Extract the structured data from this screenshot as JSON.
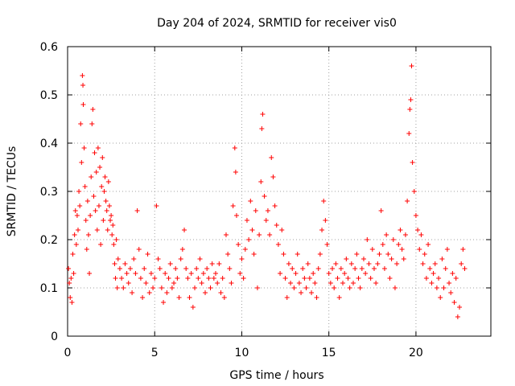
{
  "chart_data": {
    "type": "scatter",
    "title": "Day 204 of 2024, SRMTID for receiver vis0",
    "xlabel": "GPS time / hours",
    "ylabel": "SRMTID / TECUs",
    "xlim": [
      0,
      24.3
    ],
    "ylim": [
      0,
      0.6
    ],
    "grid": true,
    "marker": "+",
    "marker_color": "#ff0000",
    "x_ticks": [
      0,
      5,
      10,
      15,
      20
    ],
    "x_tick_labels": [
      "0",
      "5",
      "10",
      "15",
      "20"
    ],
    "y_ticks": [
      0,
      0.1,
      0.2,
      0.3,
      0.4,
      0.5,
      0.6
    ],
    "y_tick_labels": [
      "0",
      "0.1",
      "0.2",
      "0.3",
      "0.4",
      "0.5",
      "0.6"
    ],
    "series": [
      {
        "name": "SRMTID",
        "points": [
          [
            0.05,
            0.14
          ],
          [
            0.1,
            0.11
          ],
          [
            0.15,
            0.08
          ],
          [
            0.2,
            0.12
          ],
          [
            0.25,
            0.07
          ],
          [
            0.3,
            0.17
          ],
          [
            0.35,
            0.13
          ],
          [
            0.4,
            0.21
          ],
          [
            0.45,
            0.26
          ],
          [
            0.5,
            0.19
          ],
          [
            0.55,
            0.25
          ],
          [
            0.6,
            0.22
          ],
          [
            0.65,
            0.3
          ],
          [
            0.7,
            0.27
          ],
          [
            0.75,
            0.44
          ],
          [
            0.8,
            0.36
          ],
          [
            0.85,
            0.54
          ],
          [
            0.88,
            0.52
          ],
          [
            0.9,
            0.48
          ],
          [
            0.95,
            0.39
          ],
          [
            1.0,
            0.31
          ],
          [
            1.05,
            0.24
          ],
          [
            1.1,
            0.18
          ],
          [
            1.15,
            0.28
          ],
          [
            1.2,
            0.21
          ],
          [
            1.25,
            0.13
          ],
          [
            1.3,
            0.25
          ],
          [
            1.35,
            0.33
          ],
          [
            1.4,
            0.44
          ],
          [
            1.45,
            0.47
          ],
          [
            1.5,
            0.29
          ],
          [
            1.55,
            0.38
          ],
          [
            1.6,
            0.26
          ],
          [
            1.65,
            0.34
          ],
          [
            1.7,
            0.22
          ],
          [
            1.75,
            0.39
          ],
          [
            1.8,
            0.27
          ],
          [
            1.85,
            0.35
          ],
          [
            1.9,
            0.19
          ],
          [
            1.95,
            0.31
          ],
          [
            2.0,
            0.37
          ],
          [
            2.05,
            0.24
          ],
          [
            2.1,
            0.3
          ],
          [
            2.15,
            0.33
          ],
          [
            2.2,
            0.28
          ],
          [
            2.25,
            0.26
          ],
          [
            2.3,
            0.22
          ],
          [
            2.35,
            0.32
          ],
          [
            2.4,
            0.27
          ],
          [
            2.45,
            0.24
          ],
          [
            2.5,
            0.25
          ],
          [
            2.55,
            0.21
          ],
          [
            2.6,
            0.23
          ],
          [
            2.65,
            0.19
          ],
          [
            2.7,
            0.15
          ],
          [
            2.75,
            0.12
          ],
          [
            2.8,
            0.2
          ],
          [
            2.85,
            0.1
          ],
          [
            2.9,
            0.16
          ],
          [
            3.0,
            0.14
          ],
          [
            3.1,
            0.12
          ],
          [
            3.2,
            0.1
          ],
          [
            3.3,
            0.15
          ],
          [
            3.4,
            0.13
          ],
          [
            3.5,
            0.11
          ],
          [
            3.6,
            0.14
          ],
          [
            3.7,
            0.09
          ],
          [
            3.8,
            0.16
          ],
          [
            3.9,
            0.13
          ],
          [
            4.0,
            0.26
          ],
          [
            4.1,
            0.18
          ],
          [
            4.2,
            0.12
          ],
          [
            4.3,
            0.08
          ],
          [
            4.4,
            0.14
          ],
          [
            4.5,
            0.11
          ],
          [
            4.6,
            0.17
          ],
          [
            4.7,
            0.09
          ],
          [
            4.8,
            0.13
          ],
          [
            4.9,
            0.1
          ],
          [
            5.0,
            0.12
          ],
          [
            5.1,
            0.27
          ],
          [
            5.2,
            0.16
          ],
          [
            5.3,
            0.14
          ],
          [
            5.4,
            0.1
          ],
          [
            5.5,
            0.07
          ],
          [
            5.6,
            0.13
          ],
          [
            5.7,
            0.09
          ],
          [
            5.8,
            0.12
          ],
          [
            5.9,
            0.15
          ],
          [
            6.0,
            0.1
          ],
          [
            6.1,
            0.11
          ],
          [
            6.2,
            0.14
          ],
          [
            6.3,
            0.12
          ],
          [
            6.4,
            0.08
          ],
          [
            6.5,
            0.16
          ],
          [
            6.6,
            0.18
          ],
          [
            6.7,
            0.22
          ],
          [
            6.8,
            0.14
          ],
          [
            6.9,
            0.12
          ],
          [
            7.0,
            0.08
          ],
          [
            7.1,
            0.13
          ],
          [
            7.2,
            0.06
          ],
          [
            7.3,
            0.1
          ],
          [
            7.4,
            0.14
          ],
          [
            7.5,
            0.12
          ],
          [
            7.6,
            0.16
          ],
          [
            7.7,
            0.11
          ],
          [
            7.8,
            0.13
          ],
          [
            7.9,
            0.09
          ],
          [
            8.0,
            0.14
          ],
          [
            8.1,
            0.12
          ],
          [
            8.2,
            0.1
          ],
          [
            8.3,
            0.15
          ],
          [
            8.4,
            0.12
          ],
          [
            8.5,
            0.13
          ],
          [
            8.6,
            0.11
          ],
          [
            8.7,
            0.15
          ],
          [
            8.8,
            0.09
          ],
          [
            8.9,
            0.12
          ],
          [
            9.0,
            0.08
          ],
          [
            9.1,
            0.21
          ],
          [
            9.2,
            0.17
          ],
          [
            9.3,
            0.14
          ],
          [
            9.4,
            0.11
          ],
          [
            9.5,
            0.27
          ],
          [
            9.6,
            0.39
          ],
          [
            9.65,
            0.34
          ],
          [
            9.7,
            0.25
          ],
          [
            9.8,
            0.19
          ],
          [
            9.9,
            0.13
          ],
          [
            10.0,
            0.16
          ],
          [
            10.1,
            0.12
          ],
          [
            10.2,
            0.18
          ],
          [
            10.3,
            0.24
          ],
          [
            10.4,
            0.2
          ],
          [
            10.5,
            0.28
          ],
          [
            10.6,
            0.22
          ],
          [
            10.7,
            0.17
          ],
          [
            10.8,
            0.26
          ],
          [
            10.9,
            0.1
          ],
          [
            11.0,
            0.21
          ],
          [
            11.1,
            0.32
          ],
          [
            11.15,
            0.43
          ],
          [
            11.2,
            0.46
          ],
          [
            11.3,
            0.29
          ],
          [
            11.4,
            0.24
          ],
          [
            11.5,
            0.26
          ],
          [
            11.6,
            0.21
          ],
          [
            11.7,
            0.37
          ],
          [
            11.8,
            0.33
          ],
          [
            11.9,
            0.27
          ],
          [
            12.0,
            0.23
          ],
          [
            12.1,
            0.19
          ],
          [
            12.2,
            0.13
          ],
          [
            12.3,
            0.22
          ],
          [
            12.4,
            0.17
          ],
          [
            12.5,
            0.12
          ],
          [
            12.6,
            0.08
          ],
          [
            12.7,
            0.15
          ],
          [
            12.8,
            0.11
          ],
          [
            12.9,
            0.14
          ],
          [
            13.0,
            0.1
          ],
          [
            13.1,
            0.13
          ],
          [
            13.2,
            0.17
          ],
          [
            13.3,
            0.11
          ],
          [
            13.4,
            0.09
          ],
          [
            13.5,
            0.14
          ],
          [
            13.6,
            0.12
          ],
          [
            13.7,
            0.1
          ],
          [
            13.8,
            0.15
          ],
          [
            13.9,
            0.12
          ],
          [
            14.0,
            0.09
          ],
          [
            14.1,
            0.13
          ],
          [
            14.2,
            0.11
          ],
          [
            14.3,
            0.08
          ],
          [
            14.4,
            0.14
          ],
          [
            14.5,
            0.17
          ],
          [
            14.6,
            0.22
          ],
          [
            14.7,
            0.28
          ],
          [
            14.8,
            0.24
          ],
          [
            14.9,
            0.19
          ],
          [
            15.0,
            0.13
          ],
          [
            15.1,
            0.11
          ],
          [
            15.2,
            0.14
          ],
          [
            15.3,
            0.1
          ],
          [
            15.4,
            0.15
          ],
          [
            15.5,
            0.12
          ],
          [
            15.6,
            0.08
          ],
          [
            15.7,
            0.14
          ],
          [
            15.8,
            0.11
          ],
          [
            15.9,
            0.13
          ],
          [
            16.0,
            0.16
          ],
          [
            16.1,
            0.12
          ],
          [
            16.2,
            0.1
          ],
          [
            16.3,
            0.15
          ],
          [
            16.4,
            0.11
          ],
          [
            16.5,
            0.14
          ],
          [
            16.6,
            0.17
          ],
          [
            16.7,
            0.12
          ],
          [
            16.8,
            0.1
          ],
          [
            16.9,
            0.14
          ],
          [
            17.0,
            0.16
          ],
          [
            17.1,
            0.13
          ],
          [
            17.2,
            0.2
          ],
          [
            17.3,
            0.15
          ],
          [
            17.4,
            0.12
          ],
          [
            17.5,
            0.18
          ],
          [
            17.6,
            0.14
          ],
          [
            17.7,
            0.11
          ],
          [
            17.8,
            0.15
          ],
          [
            17.9,
            0.17
          ],
          [
            18.0,
            0.26
          ],
          [
            18.1,
            0.19
          ],
          [
            18.2,
            0.14
          ],
          [
            18.3,
            0.21
          ],
          [
            18.4,
            0.17
          ],
          [
            18.5,
            0.12
          ],
          [
            18.6,
            0.16
          ],
          [
            18.7,
            0.2
          ],
          [
            18.8,
            0.1
          ],
          [
            18.9,
            0.15
          ],
          [
            19.0,
            0.19
          ],
          [
            19.1,
            0.22
          ],
          [
            19.2,
            0.18
          ],
          [
            19.3,
            0.16
          ],
          [
            19.4,
            0.21
          ],
          [
            19.5,
            0.28
          ],
          [
            19.6,
            0.42
          ],
          [
            19.65,
            0.47
          ],
          [
            19.7,
            0.49
          ],
          [
            19.75,
            0.56
          ],
          [
            19.8,
            0.36
          ],
          [
            19.9,
            0.3
          ],
          [
            20.0,
            0.25
          ],
          [
            20.1,
            0.22
          ],
          [
            20.2,
            0.18
          ],
          [
            20.3,
            0.21
          ],
          [
            20.4,
            0.15
          ],
          [
            20.5,
            0.17
          ],
          [
            20.6,
            0.12
          ],
          [
            20.7,
            0.19
          ],
          [
            20.8,
            0.14
          ],
          [
            20.9,
            0.11
          ],
          [
            21.0,
            0.13
          ],
          [
            21.1,
            0.15
          ],
          [
            21.2,
            0.1
          ],
          [
            21.3,
            0.12
          ],
          [
            21.4,
            0.08
          ],
          [
            21.5,
            0.16
          ],
          [
            21.6,
            0.1
          ],
          [
            21.7,
            0.14
          ],
          [
            21.8,
            0.18
          ],
          [
            21.9,
            0.11
          ],
          [
            22.0,
            0.09
          ],
          [
            22.1,
            0.13
          ],
          [
            22.2,
            0.07
          ],
          [
            22.3,
            0.12
          ],
          [
            22.4,
            0.04
          ],
          [
            22.5,
            0.06
          ],
          [
            22.6,
            0.15
          ],
          [
            22.7,
            0.18
          ],
          [
            22.8,
            0.14
          ]
        ]
      }
    ]
  }
}
